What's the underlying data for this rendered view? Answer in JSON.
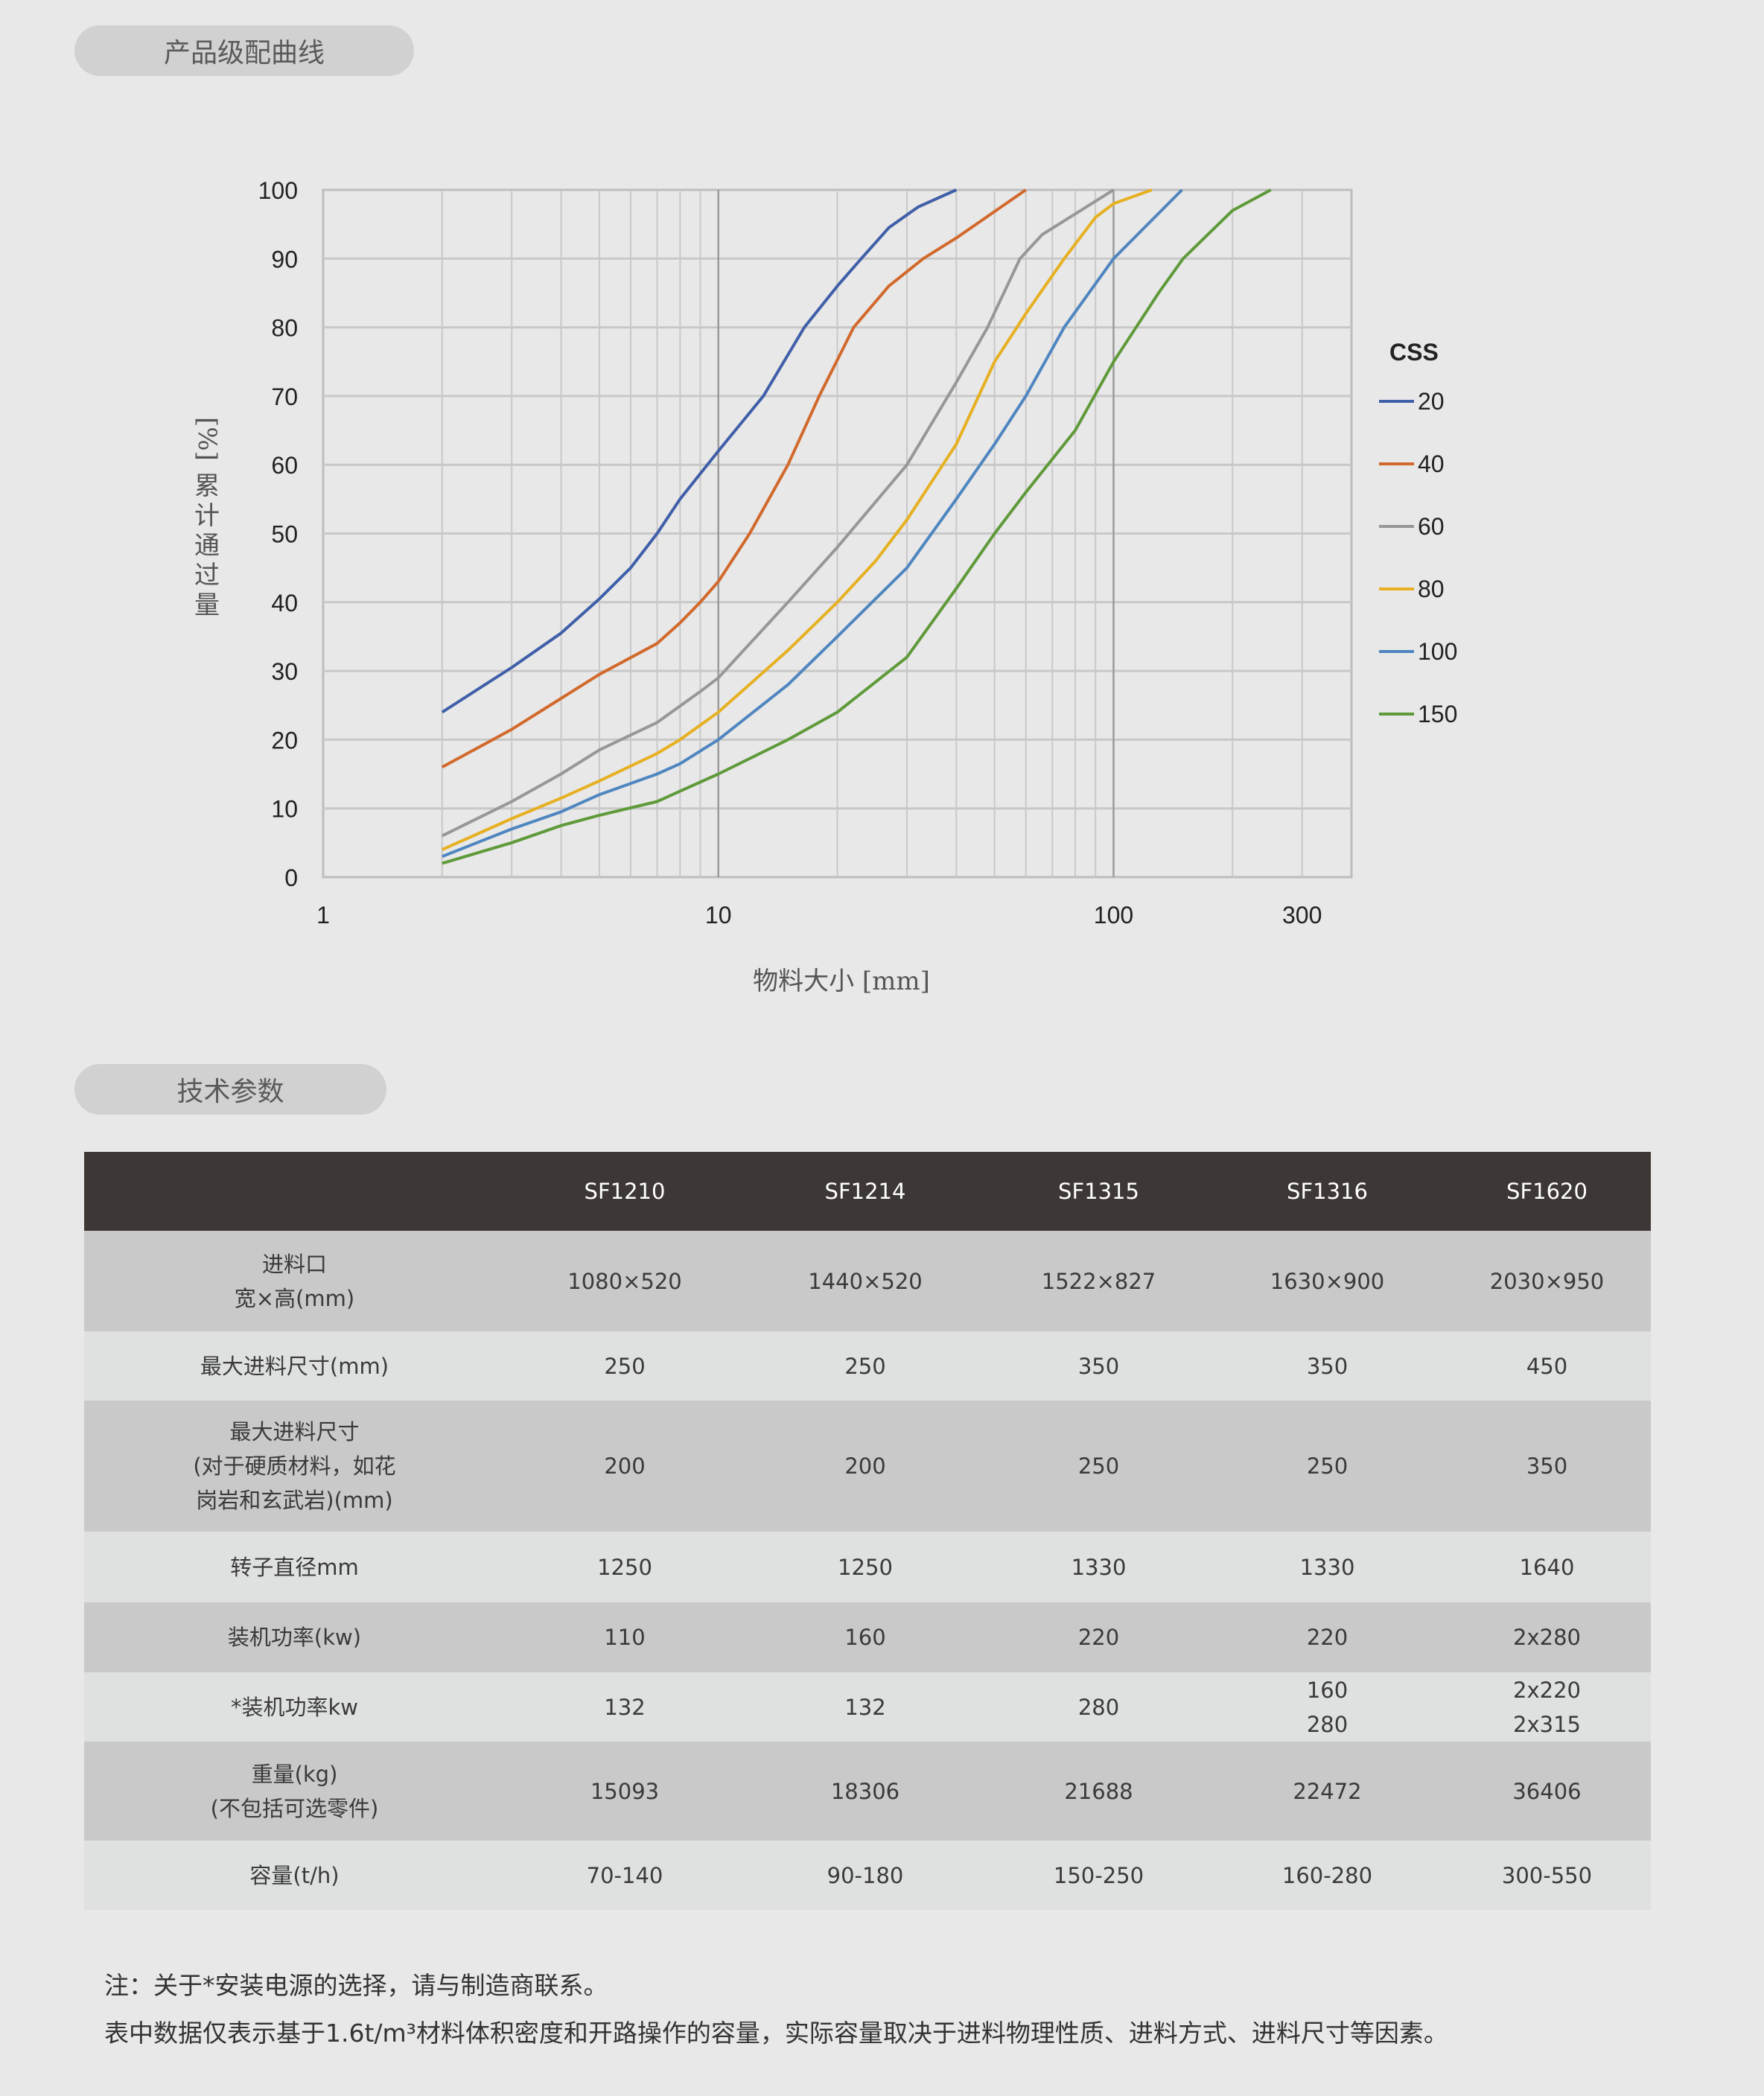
{
  "sections": {
    "curve_title": "产品级配曲线",
    "params_title": "技术参数"
  },
  "chart_data": {
    "type": "line",
    "xlabel": "物料大小 [mm]",
    "ylabel_unit": "[%]",
    "ylabel": "累计通过量",
    "x_scale": "log",
    "xlim": [
      1,
      400
    ],
    "ylim": [
      0,
      100
    ],
    "x_ticks": [
      "1",
      "10",
      "100",
      "300"
    ],
    "y_ticks": [
      "0",
      "10",
      "20",
      "30",
      "40",
      "50",
      "60",
      "70",
      "80",
      "90",
      "100"
    ],
    "grid": true,
    "legend_title": "CSS",
    "legend_position": "right",
    "series": [
      {
        "name": "20",
        "color": "#3f5fa8",
        "points": [
          [
            2,
            24
          ],
          [
            3,
            30.5
          ],
          [
            4,
            35.5
          ],
          [
            5,
            40.5
          ],
          [
            6,
            45
          ],
          [
            7,
            50
          ],
          [
            8,
            55
          ],
          [
            10,
            62
          ],
          [
            13,
            70
          ],
          [
            16.5,
            80
          ],
          [
            20,
            86
          ],
          [
            23,
            90
          ],
          [
            27,
            94.5
          ],
          [
            32,
            97.5
          ],
          [
            40,
            100
          ]
        ]
      },
      {
        "name": "40",
        "color": "#d2692c",
        "points": [
          [
            2,
            16
          ],
          [
            3,
            21.5
          ],
          [
            4,
            26
          ],
          [
            5,
            29.5
          ],
          [
            7,
            34
          ],
          [
            8,
            37
          ],
          [
            9,
            40
          ],
          [
            10,
            43
          ],
          [
            12,
            50
          ],
          [
            15,
            60
          ],
          [
            18,
            70
          ],
          [
            22,
            80
          ],
          [
            27,
            86
          ],
          [
            33,
            90
          ],
          [
            40,
            93
          ],
          [
            60,
            100
          ]
        ]
      },
      {
        "name": "60",
        "color": "#979797",
        "points": [
          [
            2,
            6
          ],
          [
            3,
            11
          ],
          [
            4,
            15
          ],
          [
            5,
            18.5
          ],
          [
            7,
            22.5
          ],
          [
            9,
            27
          ],
          [
            10,
            29
          ],
          [
            15,
            40
          ],
          [
            20,
            48
          ],
          [
            30,
            60
          ],
          [
            40,
            72
          ],
          [
            48,
            80
          ],
          [
            58,
            90
          ],
          [
            66,
            93.5
          ],
          [
            80,
            96.5
          ],
          [
            100,
            100
          ]
        ]
      },
      {
        "name": "80",
        "color": "#e6b022",
        "points": [
          [
            2,
            4
          ],
          [
            3,
            8.5
          ],
          [
            4,
            11.5
          ],
          [
            5,
            14
          ],
          [
            7,
            18
          ],
          [
            8,
            20
          ],
          [
            10,
            24
          ],
          [
            15,
            33
          ],
          [
            20,
            40
          ],
          [
            25,
            46
          ],
          [
            30,
            52
          ],
          [
            40,
            63
          ],
          [
            50,
            75
          ],
          [
            60,
            82
          ],
          [
            75,
            90
          ],
          [
            90,
            96
          ],
          [
            100,
            98
          ],
          [
            125,
            100
          ]
        ]
      },
      {
        "name": "100",
        "color": "#4f86c0",
        "points": [
          [
            2,
            3
          ],
          [
            3,
            7
          ],
          [
            4,
            9.5
          ],
          [
            5,
            12
          ],
          [
            7,
            15
          ],
          [
            8,
            16.5
          ],
          [
            10,
            20
          ],
          [
            15,
            28
          ],
          [
            20,
            35
          ],
          [
            30,
            45
          ],
          [
            40,
            55
          ],
          [
            50,
            63
          ],
          [
            60,
            70
          ],
          [
            75,
            80
          ],
          [
            100,
            90
          ],
          [
            149,
            100
          ]
        ]
      },
      {
        "name": "150",
        "color": "#5f9a3a",
        "points": [
          [
            2,
            2
          ],
          [
            3,
            5
          ],
          [
            4,
            7.5
          ],
          [
            5,
            9
          ],
          [
            7,
            11
          ],
          [
            8,
            12.5
          ],
          [
            10,
            15
          ],
          [
            15,
            20
          ],
          [
            20,
            24
          ],
          [
            30,
            32
          ],
          [
            40,
            42
          ],
          [
            50,
            50
          ],
          [
            60,
            56
          ],
          [
            80,
            65
          ],
          [
            100,
            75
          ],
          [
            130,
            85
          ],
          [
            150,
            90
          ],
          [
            200,
            97
          ],
          [
            250,
            100
          ]
        ]
      }
    ]
  },
  "table": {
    "headers": [
      "",
      "SF1210",
      "SF1214",
      "SF1315",
      "SF1316",
      "SF1620"
    ],
    "rows": [
      {
        "label": [
          "进料口",
          "宽×高(mm)"
        ],
        "values": [
          [
            "1080×520"
          ],
          [
            "1440×520"
          ],
          [
            "1522×827"
          ],
          [
            "1630×900"
          ],
          [
            "2030×950"
          ]
        ]
      },
      {
        "label": [
          "最大进料尺寸(mm)"
        ],
        "values": [
          [
            "250"
          ],
          [
            "250"
          ],
          [
            "350"
          ],
          [
            "350"
          ],
          [
            "450"
          ]
        ]
      },
      {
        "label": [
          "最大进料尺寸",
          "(对于硬质材料，如花",
          "岗岩和玄武岩)(mm)"
        ],
        "values": [
          [
            "200"
          ],
          [
            "200"
          ],
          [
            "250"
          ],
          [
            "250"
          ],
          [
            "350"
          ]
        ]
      },
      {
        "label": [
          "转子直径mm"
        ],
        "values": [
          [
            "1250"
          ],
          [
            "1250"
          ],
          [
            "1330"
          ],
          [
            "1330"
          ],
          [
            "1640"
          ]
        ]
      },
      {
        "label": [
          "装机功率(kw)"
        ],
        "values": [
          [
            "110"
          ],
          [
            "160"
          ],
          [
            "220"
          ],
          [
            "220"
          ],
          [
            "2x280"
          ]
        ]
      },
      {
        "label": [
          "*装机功率kw"
        ],
        "values": [
          [
            "132"
          ],
          [
            "132"
          ],
          [
            "280"
          ],
          [
            "160",
            "280"
          ],
          [
            "2x220",
            "2x315"
          ]
        ]
      },
      {
        "label": [
          "重量(kg)",
          "(不包括可选零件)"
        ],
        "values": [
          [
            "15093"
          ],
          [
            "18306"
          ],
          [
            "21688"
          ],
          [
            "22472"
          ],
          [
            "36406"
          ]
        ]
      },
      {
        "label": [
          "容量(t/h)"
        ],
        "values": [
          [
            "70-140"
          ],
          [
            "90-180"
          ],
          [
            "150-250"
          ],
          [
            "160-280"
          ],
          [
            "300-550"
          ]
        ]
      }
    ]
  },
  "notes": [
    "注：关于*安装电源的选择，请与制造商联系。",
    "表中数据仅表示基于1.6t/m³材料体积密度和开路操作的容量，实际容量取决于进料物理性质、进料方式、进料尺寸等因素。"
  ]
}
